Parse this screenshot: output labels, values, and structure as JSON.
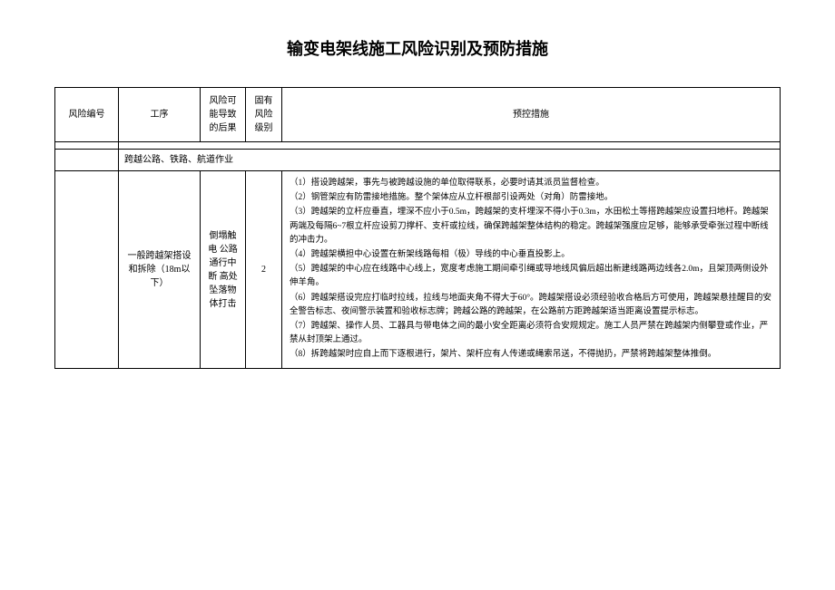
{
  "title": "输变电架线施工风险识别及预防措施",
  "headers": {
    "risk_id": "风险编号",
    "procedure": "工序",
    "consequence": "风险可能导致的后果",
    "inherent_level": "固有风险级别",
    "measures": "预控措施"
  },
  "section_label": "跨越公路、铁路、航道作业",
  "row": {
    "risk_id": "",
    "procedure": "一般跨越架搭设和拆除（18m以下）",
    "consequence": "倒塌触电 公路通行中断 高处坠落物体打击",
    "level": "2",
    "measures": [
      "（1）搭设跨越架，事先与被跨越设施的单位取得联系，必要时请其派员监督检查。",
      "（2）钢管架应有防雷接地措施。整个架体应从立杆根部引设两处（对角）防雷接地。",
      "（3）跨越架的立杆应垂直，埋深不应小于0.5m，跨越架的支杆埋深不得小于0.3m，水田松土等搭跨越架应设置扫地杆。跨越架两端及每隔6~7根立杆应设剪刀撑杆、支杆或拉线，确保跨越架整体结构的稳定。跨越架强度应足够，能够承受牵张过程中断线的冲击力。",
      "（4）跨越架横担中心设置在新架线路每相（极）导线的中心垂直投影上。",
      "（5）跨越架的中心应在线路中心线上，宽度考虑施工期间牵引绳或导地线风偏后超出新建线路两边线各2.0m，且架顶两侧设外伸羊角。",
      "（6）跨越架搭设完应打临时拉线，拉线与地面夹角不得大于60°。跨越架搭设必须经验收合格后方可使用，跨越架悬挂醒目的安全警告标志、夜间警示装置和验收标志牌；跨越公路的跨越架，在公路前方距跨越架适当距离设置提示标志。",
      "（7）跨越架、操作人员、工器具与带电体之间的最小安全距离必须符合安规规定。施工人员严禁在跨越架内侧攀登或作业，严禁从封顶架上通过。",
      "（8）拆跨越架时应自上而下逐根进行，架片、架杆应有人传递或绳索吊送，不得抛扔，严禁将跨越架整体推倒。"
    ]
  }
}
